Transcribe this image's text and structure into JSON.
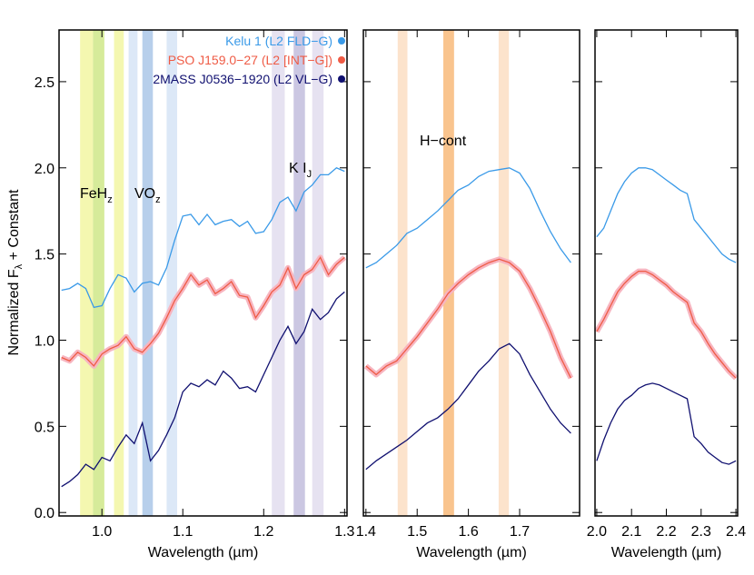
{
  "chart_data": [
    {
      "type": "line",
      "xlabel": "Wavelength (µm)",
      "ylabel": {
        "text": "Normalized F",
        "sub": "λ",
        "after": " + Constant"
      },
      "xlim": [
        0.947,
        1.303
      ],
      "ylim": [
        -0.02,
        2.8
      ],
      "xticks": [
        {
          "value": 1,
          "label": "1.0"
        },
        1.1,
        1.2,
        1.3
      ],
      "yticks": [
        {
          "value": 0,
          "label": "0.0"
        },
        0.5,
        {
          "value": 1,
          "label": "1.0"
        },
        1.5,
        {
          "value": 2,
          "label": "2.0"
        },
        2.5
      ],
      "bands": [
        {
          "xmin": 0.973,
          "xmax": 0.989,
          "color": "#f4f7b0"
        },
        {
          "xmin": 0.989,
          "xmax": 1.003,
          "color": "#d6eb9a"
        },
        {
          "xmin": 1.015,
          "xmax": 1.027,
          "color": "#f4f7b0"
        },
        {
          "xmin": 1.033,
          "xmax": 1.044,
          "color": "#dce8f7"
        },
        {
          "xmin": 1.05,
          "xmax": 1.063,
          "color": "#b7cfeb"
        },
        {
          "xmin": 1.08,
          "xmax": 1.093,
          "color": "#dce8f7"
        },
        {
          "xmin": 1.21,
          "xmax": 1.226,
          "color": "#e6e2f1"
        },
        {
          "xmin": 1.237,
          "xmax": 1.251,
          "color": "#cbc7e2"
        },
        {
          "xmin": 1.26,
          "xmax": 1.274,
          "color": "#e6e2f1"
        }
      ],
      "annotations": [
        {
          "text": "FeH",
          "sub": "z"
        },
        {
          "text": "VO",
          "sub": "z"
        },
        {
          "text": "K I",
          "sub": "J"
        }
      ],
      "x": [
        0.95,
        0.96,
        0.97,
        0.98,
        0.99,
        1.0,
        1.01,
        1.02,
        1.03,
        1.04,
        1.05,
        1.06,
        1.07,
        1.08,
        1.09,
        1.1,
        1.11,
        1.12,
        1.13,
        1.14,
        1.15,
        1.16,
        1.17,
        1.18,
        1.19,
        1.2,
        1.21,
        1.22,
        1.23,
        1.24,
        1.25,
        1.26,
        1.27,
        1.28,
        1.29,
        1.3
      ],
      "series": [
        {
          "name": "Kelu 1 (L2 FLD−G)",
          "color": "#3a9ae8",
          "values": [
            1.29,
            1.3,
            1.33,
            1.3,
            1.19,
            1.2,
            1.3,
            1.38,
            1.36,
            1.28,
            1.33,
            1.34,
            1.32,
            1.42,
            1.58,
            1.72,
            1.73,
            1.67,
            1.73,
            1.67,
            1.69,
            1.7,
            1.66,
            1.69,
            1.62,
            1.63,
            1.7,
            1.8,
            1.83,
            1.75,
            1.86,
            1.9,
            1.96,
            1.96,
            2.0,
            1.98
          ]
        },
        {
          "name": "PSO J159.0−27 (L2 [INT−G])",
          "color": "#ef5b45",
          "values": [
            0.9,
            0.88,
            0.93,
            0.9,
            0.85,
            0.92,
            0.95,
            0.97,
            1.02,
            0.95,
            0.93,
            0.98,
            1.04,
            1.13,
            1.23,
            1.3,
            1.38,
            1.32,
            1.35,
            1.27,
            1.3,
            1.34,
            1.26,
            1.25,
            1.13,
            1.2,
            1.28,
            1.32,
            1.42,
            1.3,
            1.38,
            1.41,
            1.48,
            1.38,
            1.44,
            1.48
          ]
        },
        {
          "name": "2MASS J0536−1920 (L2 VL−G)",
          "color": "#101070",
          "values": [
            0.15,
            0.18,
            0.22,
            0.28,
            0.25,
            0.32,
            0.3,
            0.38,
            0.45,
            0.4,
            0.52,
            0.3,
            0.36,
            0.45,
            0.55,
            0.7,
            0.75,
            0.73,
            0.77,
            0.74,
            0.82,
            0.78,
            0.72,
            0.73,
            0.7,
            0.8,
            0.9,
            1.0,
            1.08,
            0.98,
            1.05,
            1.18,
            1.12,
            1.16,
            1.24,
            1.28
          ]
        }
      ]
    },
    {
      "type": "line",
      "xlabel": "Wavelength (µm)",
      "xlim": [
        1.395,
        1.817
      ],
      "ylim": [
        -0.02,
        2.8
      ],
      "xticks": [
        1.4,
        1.5,
        1.6,
        1.7
      ],
      "bands": [
        {
          "xmin": 1.462,
          "xmax": 1.481,
          "color": "#fce3cc"
        },
        {
          "xmin": 1.551,
          "xmax": 1.572,
          "color": "#f9c48e"
        },
        {
          "xmin": 1.659,
          "xmax": 1.679,
          "color": "#fce3cc"
        }
      ],
      "annotations": [
        {
          "text": "H−cont"
        }
      ],
      "x": [
        1.4,
        1.42,
        1.44,
        1.46,
        1.48,
        1.5,
        1.52,
        1.54,
        1.56,
        1.58,
        1.6,
        1.62,
        1.64,
        1.66,
        1.68,
        1.7,
        1.72,
        1.74,
        1.76,
        1.78,
        1.8
      ],
      "series": [
        {
          "color": "#3a9ae8",
          "values": [
            1.42,
            1.45,
            1.5,
            1.55,
            1.62,
            1.65,
            1.7,
            1.75,
            1.81,
            1.87,
            1.9,
            1.95,
            1.98,
            1.99,
            2.0,
            1.97,
            1.88,
            1.75,
            1.63,
            1.53,
            1.45
          ]
        },
        {
          "color": "#ef5b45",
          "values": [
            0.85,
            0.8,
            0.85,
            0.88,
            0.95,
            1.02,
            1.1,
            1.18,
            1.27,
            1.33,
            1.38,
            1.42,
            1.45,
            1.47,
            1.45,
            1.4,
            1.3,
            1.18,
            1.05,
            0.9,
            0.78
          ]
        },
        {
          "color": "#101070",
          "values": [
            0.25,
            0.3,
            0.34,
            0.38,
            0.42,
            0.47,
            0.52,
            0.55,
            0.6,
            0.66,
            0.74,
            0.82,
            0.88,
            0.95,
            0.98,
            0.92,
            0.8,
            0.7,
            0.6,
            0.52,
            0.46
          ]
        }
      ]
    },
    {
      "type": "line",
      "xlabel": "Wavelength (µm)",
      "xlim": [
        1.995,
        2.405
      ],
      "ylim": [
        -0.02,
        2.8
      ],
      "xticks": [
        {
          "value": 2,
          "label": "2.0"
        },
        2.1,
        2.2,
        2.3,
        2.4
      ],
      "x": [
        2.0,
        2.02,
        2.04,
        2.06,
        2.08,
        2.1,
        2.12,
        2.14,
        2.16,
        2.18,
        2.2,
        2.22,
        2.24,
        2.26,
        2.28,
        2.3,
        2.32,
        2.34,
        2.36,
        2.38,
        2.4
      ],
      "series": [
        {
          "color": "#3a9ae8",
          "values": [
            1.6,
            1.65,
            1.75,
            1.85,
            1.92,
            1.97,
            2.0,
            2.0,
            1.99,
            1.96,
            1.93,
            1.9,
            1.87,
            1.85,
            1.7,
            1.65,
            1.6,
            1.55,
            1.5,
            1.47,
            1.45
          ]
        },
        {
          "color": "#ef5b45",
          "values": [
            1.05,
            1.12,
            1.2,
            1.28,
            1.33,
            1.37,
            1.4,
            1.4,
            1.38,
            1.35,
            1.32,
            1.28,
            1.25,
            1.22,
            1.1,
            1.05,
            0.98,
            0.92,
            0.87,
            0.82,
            0.78
          ]
        },
        {
          "color": "#101070",
          "values": [
            0.3,
            0.42,
            0.52,
            0.6,
            0.65,
            0.68,
            0.72,
            0.74,
            0.75,
            0.74,
            0.72,
            0.7,
            0.68,
            0.66,
            0.44,
            0.4,
            0.35,
            0.32,
            0.29,
            0.28,
            0.3
          ]
        }
      ]
    }
  ]
}
